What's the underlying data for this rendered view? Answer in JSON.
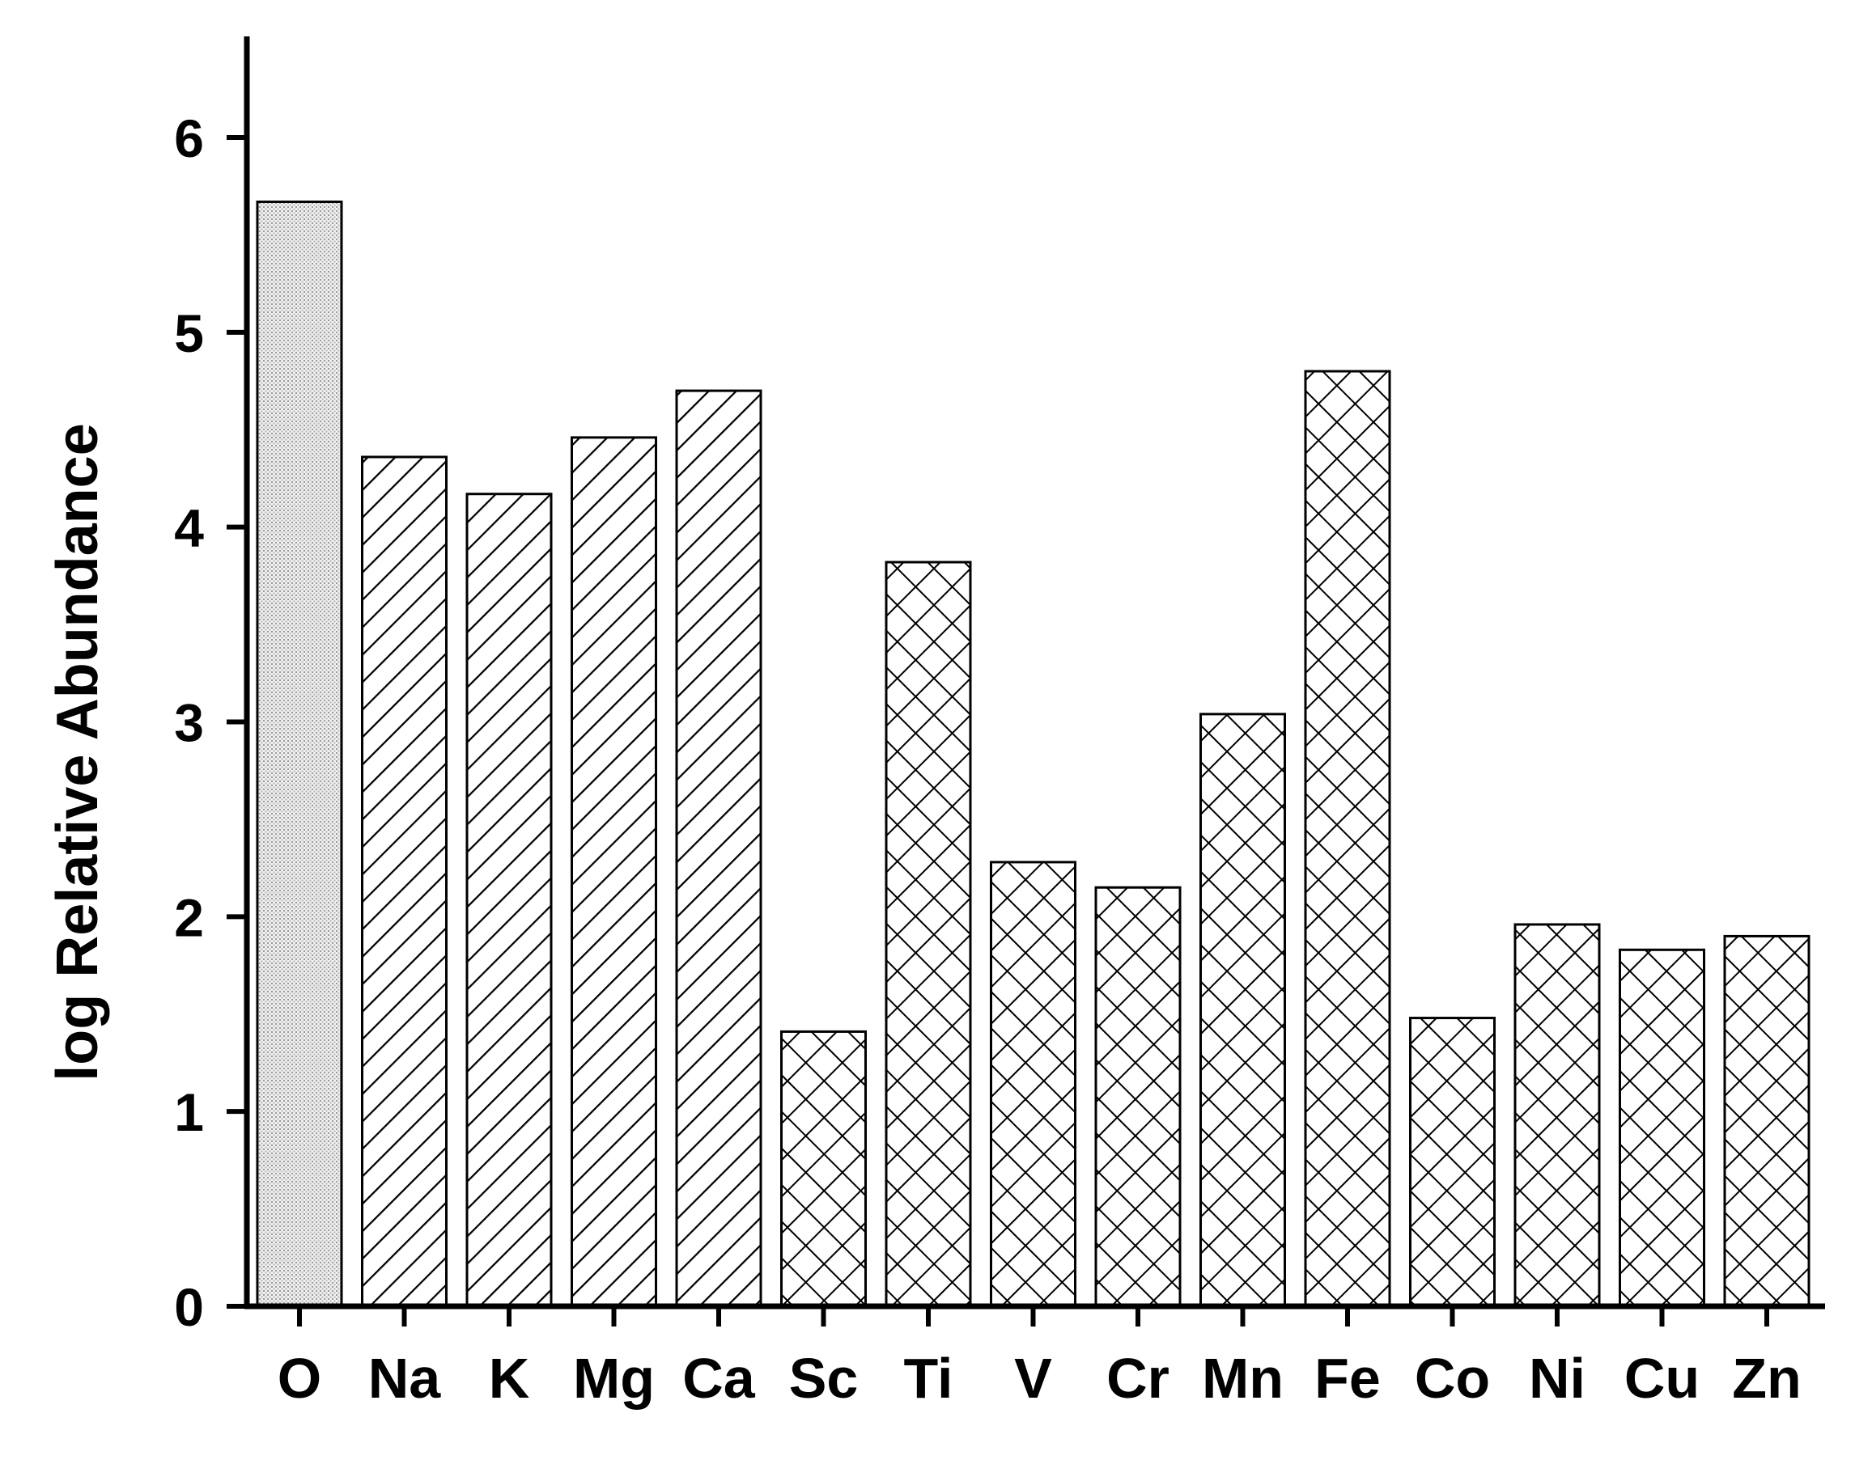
{
  "chart_data": {
    "type": "bar",
    "title": "",
    "xlabel": "",
    "ylabel": "log Relative Abundance",
    "ylim": [
      0,
      6.5
    ],
    "yticks": [
      0,
      1,
      2,
      3,
      4,
      5,
      6
    ],
    "grid": false,
    "legend": "none",
    "categories": [
      "O",
      "Na",
      "K",
      "Mg",
      "Ca",
      "Sc",
      "Ti",
      "V",
      "Cr",
      "Mn",
      "Fe",
      "Co",
      "Ni",
      "Cu",
      "Zn"
    ],
    "values": [
      5.67,
      4.36,
      4.17,
      4.46,
      4.7,
      1.41,
      3.82,
      2.28,
      2.15,
      3.04,
      4.8,
      1.48,
      1.96,
      1.83,
      1.9
    ],
    "fill_patterns": [
      "dots",
      "diagonal",
      "diagonal",
      "diagonal",
      "diagonal",
      "crosshatch",
      "crosshatch",
      "crosshatch",
      "crosshatch",
      "crosshatch",
      "crosshatch",
      "crosshatch",
      "crosshatch",
      "crosshatch",
      "crosshatch"
    ],
    "colors": {
      "bar_stroke": "#000000",
      "bar_background": "#ffffff",
      "axis": "#000000"
    }
  }
}
